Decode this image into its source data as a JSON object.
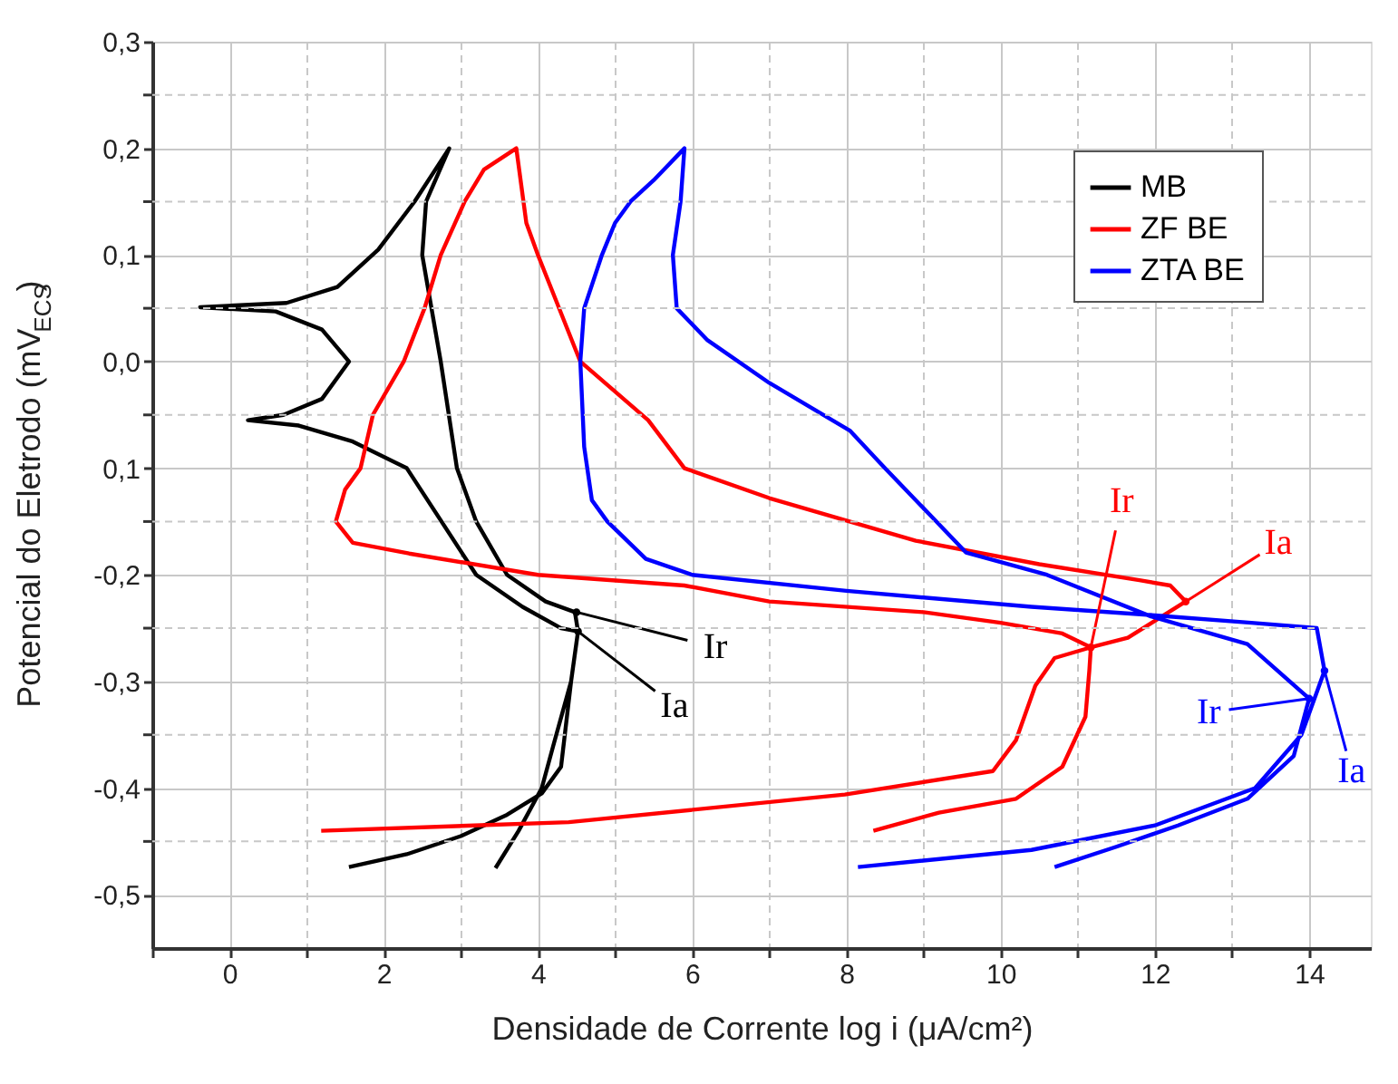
{
  "chart_data": {
    "type": "line",
    "xlabel": "Densidade de Corrente log i (μA/cm²)",
    "ylabel": "Potencial do Eletrodo (mV$_{ECS}$)",
    "xlim": [
      -1,
      14.8
    ],
    "ylim": [
      -0.55,
      0.3
    ],
    "xticks": [
      {
        "value": -1,
        "label": null
      },
      0,
      {
        "value": 1,
        "label": null
      },
      2,
      {
        "value": 3,
        "label": null
      },
      4,
      {
        "value": 5,
        "label": null
      },
      6,
      {
        "value": 7,
        "label": null
      },
      8,
      {
        "value": 9,
        "label": null
      },
      10,
      {
        "value": 11,
        "label": null
      },
      12,
      {
        "value": 13,
        "label": null
      },
      14
    ],
    "yticks": [
      {
        "value": 0.3,
        "label": "0,3"
      },
      {
        "value": 0.25,
        "label": null
      },
      {
        "value": 0.2,
        "label": "0,2"
      },
      {
        "value": 0.15,
        "label": null
      },
      {
        "value": 0.1,
        "label": "0,1"
      },
      {
        "value": 0.05,
        "label": null
      },
      {
        "value": 0,
        "label": "0,0"
      },
      {
        "value": -0.05,
        "label": null
      },
      {
        "value": -0.1,
        "label": "0,1"
      },
      {
        "value": -0.15,
        "label": null
      },
      {
        "value": -0.2,
        "label": "-0,2"
      },
      {
        "value": -0.25,
        "label": null
      },
      {
        "value": -0.3,
        "label": "-0,3"
      },
      {
        "value": -0.35,
        "label": null
      },
      {
        "value": -0.4,
        "label": "-0,4"
      },
      {
        "value": -0.45,
        "label": null
      },
      {
        "value": -0.5,
        "label": "-0,5"
      }
    ],
    "grid": true,
    "legend": "top right",
    "marker": "none",
    "line_style": "solid",
    "series": [
      {
        "name": "MB",
        "color": "#000000",
        "x": [
          1.55,
          2.3,
          3.0,
          3.6,
          4.05,
          4.3,
          4.43,
          4.52,
          4.48,
          4.1,
          3.6,
          3.2,
          2.95,
          2.74,
          2.5,
          2.55,
          2.85,
          2.4,
          1.93,
          1.4,
          0.74,
          -0.38,
          0.6,
          1.2,
          1.55,
          1.2,
          0.7,
          0.24,
          0.9,
          1.6,
          2.3,
          3.2,
          3.8,
          4.3,
          4.52,
          4.43,
          4.2,
          4.05,
          3.75,
          3.45
        ],
        "values": [
          -0.474,
          -0.462,
          -0.445,
          -0.425,
          -0.405,
          -0.38,
          -0.3,
          -0.253,
          -0.235,
          -0.225,
          -0.2,
          -0.15,
          -0.1,
          0.0,
          0.1,
          0.15,
          0.2,
          0.15,
          0.105,
          0.07,
          0.055,
          0.051,
          0.047,
          0.03,
          0.0,
          -0.035,
          -0.05,
          -0.055,
          -0.06,
          -0.075,
          -0.1,
          -0.2,
          -0.23,
          -0.25,
          -0.253,
          -0.3,
          -0.36,
          -0.4,
          -0.44,
          -0.475
        ]
      },
      {
        "name": "ZF BE",
        "color": "#ff0000",
        "x": [
          1.19,
          4.4,
          7.98,
          9.9,
          10.2,
          10.45,
          10.7,
          11.17,
          10.8,
          10.0,
          9.0,
          7.0,
          5.9,
          4.0,
          2.33,
          1.6,
          1.38,
          1.5,
          1.7,
          1.86,
          2.26,
          2.53,
          2.74,
          3.05,
          3.3,
          3.72,
          3.85,
          4.0,
          4.55,
          5.43,
          5.9,
          7.0,
          8.9,
          10.5,
          11.8,
          12.2,
          12.4,
          11.65,
          11.17,
          11.15,
          11.1,
          10.8,
          10.2,
          9.2,
          8.35
        ],
        "values": [
          -0.44,
          -0.432,
          -0.406,
          -0.384,
          -0.355,
          -0.304,
          -0.278,
          -0.268,
          -0.255,
          -0.245,
          -0.235,
          -0.225,
          -0.21,
          -0.2,
          -0.18,
          -0.17,
          -0.15,
          -0.12,
          -0.1,
          -0.05,
          0.0,
          0.05,
          0.1,
          0.15,
          0.18,
          0.2,
          0.13,
          0.1,
          0.0,
          -0.055,
          -0.1,
          -0.128,
          -0.168,
          -0.19,
          -0.205,
          -0.21,
          -0.225,
          -0.259,
          -0.268,
          -0.29,
          -0.333,
          -0.38,
          -0.41,
          -0.423,
          -0.44
        ]
      },
      {
        "name": "ZTA BE",
        "color": "#0000ff",
        "x": [
          8.15,
          10.4,
          12.0,
          13.3,
          13.9,
          14.2,
          14.1,
          13.25,
          12.0,
          10.4,
          8.0,
          6.0,
          5.4,
          4.9,
          4.7,
          4.6,
          4.55,
          4.6,
          4.83,
          5.0,
          5.2,
          5.5,
          5.9,
          5.85,
          5.75,
          5.8,
          6.2,
          7.0,
          8.05,
          8.5,
          9.1,
          9.55,
          10.6,
          11.95,
          13.2,
          14.0,
          13.8,
          13.2,
          12.3,
          11.5,
          10.7
        ],
        "values": [
          -0.474,
          -0.458,
          -0.435,
          -0.4,
          -0.35,
          -0.29,
          -0.25,
          -0.245,
          -0.238,
          -0.23,
          -0.215,
          -0.2,
          -0.185,
          -0.15,
          -0.13,
          -0.08,
          0.0,
          0.05,
          0.1,
          0.13,
          0.15,
          0.17,
          0.2,
          0.15,
          0.1,
          0.05,
          0.02,
          -0.02,
          -0.065,
          -0.1,
          -0.145,
          -0.179,
          -0.2,
          -0.239,
          -0.265,
          -0.316,
          -0.37,
          -0.41,
          -0.435,
          -0.455,
          -0.474
        ]
      }
    ],
    "annotations": [
      {
        "text": "Ir",
        "x": 4.5,
        "y": -0.235
      },
      {
        "text": "Ia",
        "x": 4.52,
        "y": -0.253
      },
      {
        "text": "Ir",
        "x": 11.17,
        "y": -0.268
      },
      {
        "text": "Ia",
        "x": 12.4,
        "y": -0.225
      },
      {
        "text": "Ir",
        "x": 14.0,
        "y": -0.316
      },
      {
        "text": "Ia",
        "x": 14.2,
        "y": -0.29
      }
    ]
  }
}
